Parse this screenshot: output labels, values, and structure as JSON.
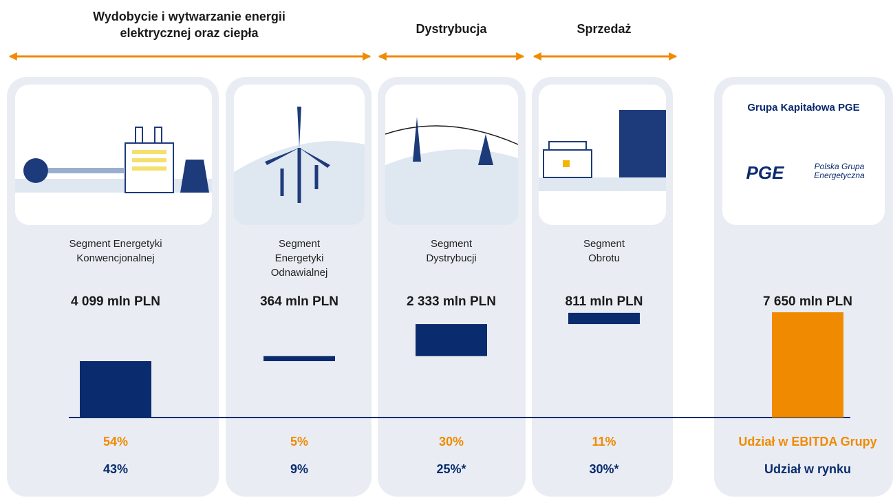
{
  "header": {
    "groups": [
      "Wydobycie i wytwarzanie energii elektrycznej oraz ciepła",
      "Dystrybucja",
      "Sprzedaż"
    ]
  },
  "logo": {
    "title": "Grupa Kapitałowa PGE",
    "brand": "PGE",
    "name": "Polska Grupa Energetyczna"
  },
  "chart_data": {
    "type": "waterfall",
    "categories": [
      "Segment Energetyki Konwencjonalnej",
      "Segment Energetyki Odnawialnej",
      "Segment Dystrybucji",
      "Segment Obrotu"
    ],
    "values": [
      4099,
      364,
      2333,
      811
    ],
    "value_labels": [
      "4 099 mln PLN",
      "364 mln PLN",
      "2 333 mln PLN",
      "811 mln PLN"
    ],
    "total": 7650,
    "total_label": "7 650 mln PLN",
    "color": "#0a2b6e",
    "total_color": "#f08a00",
    "rows": [
      {
        "name": "Udział w EBITDA Grupy",
        "color": "#f08a00",
        "values": [
          54,
          5,
          30,
          11
        ],
        "value_labels": [
          "54%",
          "5%",
          "30%",
          "11%"
        ]
      },
      {
        "name": "Udział w rynku",
        "color": "#0a2b6e",
        "values": [
          43,
          9,
          25,
          30
        ],
        "value_labels": [
          "43%",
          "9%",
          "25%*",
          "30%*"
        ]
      }
    ]
  }
}
